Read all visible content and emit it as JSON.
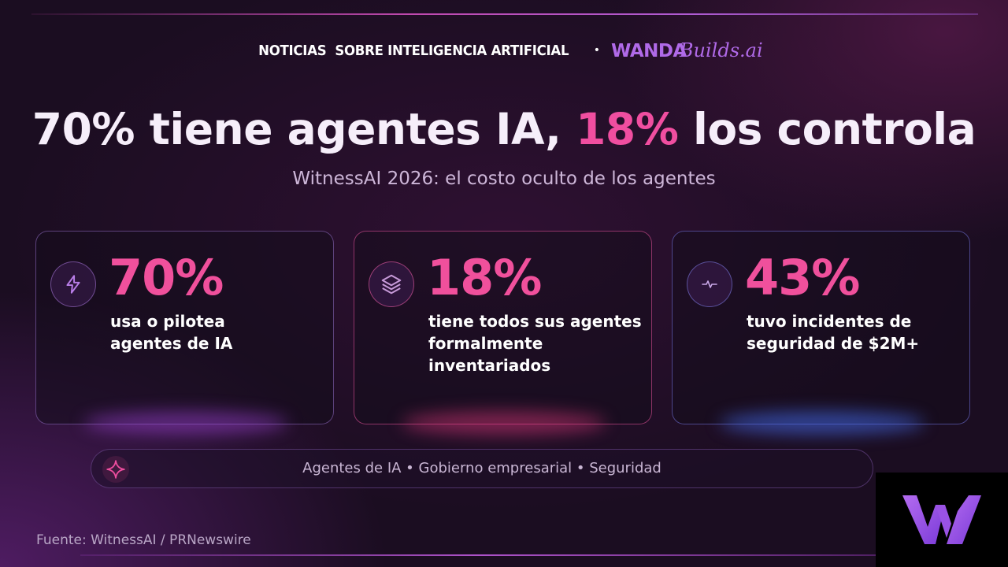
{
  "header": {
    "label": "NOTICIAS  SOBRE INTELIGENCIA ARTIFICIAL",
    "separator": "•",
    "logo_part1": "WANDA",
    "logo_part2": "Builds.ai"
  },
  "title": {
    "part1": "70% tiene agentes IA, ",
    "highlight": "18%",
    "part2": " los controla"
  },
  "subtitle": "WitnessAI 2026: el costo oculto de los agentes",
  "cards": [
    {
      "icon": "lightning-icon",
      "stat": "70%",
      "desc": "usa o pilotea\nagentes de IA"
    },
    {
      "icon": "layers-icon",
      "stat": "18%",
      "desc": "tiene todos sus agentes\nformalmente inventariados"
    },
    {
      "icon": "pulse-icon",
      "stat": "43%",
      "desc": "tuvo incidentes de\nseguridad de $2M+"
    }
  ],
  "tags": {
    "icon": "sparkle-icon",
    "text": "Agentes de IA • Gobierno empresarial • Seguridad"
  },
  "source": "Fuente: WitnessAI / PRNewswire",
  "colors": {
    "accent_pink": "#f04ea0",
    "accent_purple": "#b06ae8",
    "background": "#1b0d21"
  }
}
